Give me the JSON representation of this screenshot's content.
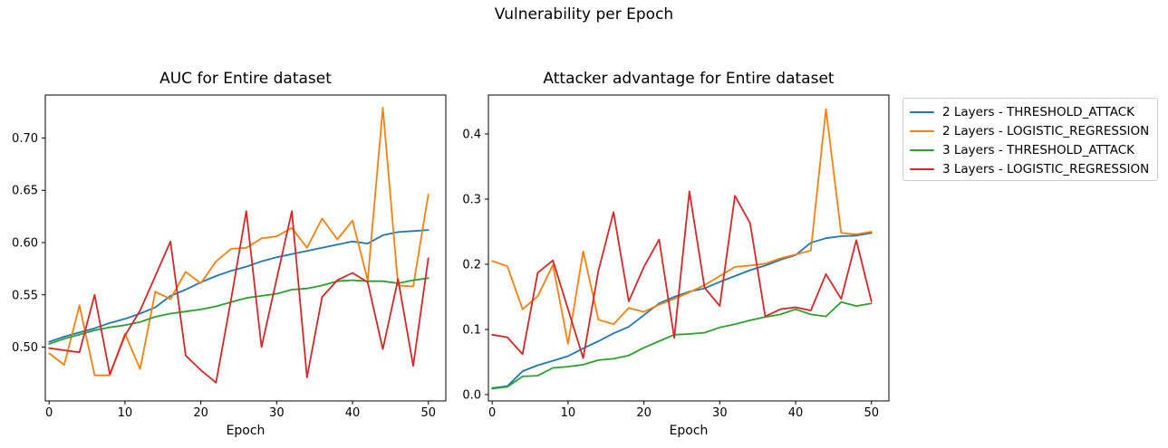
{
  "suptitle": "Vulnerability per Epoch",
  "colors": {
    "blue": "#1f77b4",
    "orange": "#ff7f0e",
    "green": "#2ca02c",
    "red": "#d62728"
  },
  "legend": {
    "entries": [
      {
        "label": "2 Layers - THRESHOLD_ATTACK",
        "color": "#1f77b4"
      },
      {
        "label": "2 Layers - LOGISTIC_REGRESSION",
        "color": "#ff7f0e"
      },
      {
        "label": "3 Layers - THRESHOLD_ATTACK",
        "color": "#2ca02c"
      },
      {
        "label": "3 Layers - LOGISTIC_REGRESSION",
        "color": "#d62728"
      }
    ]
  },
  "chart_data": [
    {
      "type": "line",
      "title": "AUC for Entire dataset",
      "xlabel": "Epoch",
      "ylabel": "",
      "grid": false,
      "x": [
        0,
        2,
        4,
        6,
        8,
        10,
        12,
        14,
        16,
        18,
        20,
        22,
        24,
        26,
        28,
        30,
        32,
        34,
        36,
        38,
        40,
        42,
        44,
        46,
        48,
        50
      ],
      "xticks": [
        0,
        10,
        20,
        30,
        40,
        50
      ],
      "xtick_labels": [
        "0",
        "10",
        "20",
        "30",
        "40",
        "50"
      ],
      "yticks": [
        0.5,
        0.55,
        0.6,
        0.65,
        0.7
      ],
      "ytick_labels": [
        "0.50",
        "0.55",
        "0.60",
        "0.65",
        "0.70"
      ],
      "xlim": [
        -0.5,
        52.3
      ],
      "ylim": [
        0.4485,
        0.7411
      ],
      "series": [
        {
          "name": "2 Layers - THRESHOLD_ATTACK",
          "color": "#1f77b4",
          "values": [
            0.505,
            0.51,
            0.514,
            0.518,
            0.523,
            0.527,
            0.532,
            0.538,
            0.549,
            0.555,
            0.562,
            0.568,
            0.573,
            0.577,
            0.582,
            0.586,
            0.589,
            0.592,
            0.595,
            0.598,
            0.601,
            0.599,
            0.607,
            0.61,
            0.611,
            0.612
          ]
        },
        {
          "name": "2 Layers - LOGISTIC_REGRESSION",
          "color": "#ff7f0e",
          "values": [
            0.494,
            0.483,
            0.54,
            0.473,
            0.473,
            0.513,
            0.479,
            0.553,
            0.546,
            0.572,
            0.561,
            0.582,
            0.594,
            0.595,
            0.604,
            0.606,
            0.614,
            0.595,
            0.623,
            0.603,
            0.621,
            0.564,
            0.729,
            0.559,
            0.558,
            0.646
          ]
        },
        {
          "name": "3 Layers - THRESHOLD_ATTACK",
          "color": "#2ca02c",
          "values": [
            0.503,
            0.508,
            0.512,
            0.516,
            0.519,
            0.521,
            0.524,
            0.529,
            0.532,
            0.534,
            0.536,
            0.539,
            0.543,
            0.547,
            0.549,
            0.551,
            0.555,
            0.556,
            0.559,
            0.563,
            0.564,
            0.563,
            0.563,
            0.561,
            0.564,
            0.566
          ]
        },
        {
          "name": "3 Layers - LOGISTIC_REGRESSION",
          "color": "#d62728",
          "values": [
            0.499,
            0.497,
            0.495,
            0.55,
            0.474,
            0.511,
            0.535,
            0.568,
            0.601,
            0.492,
            0.478,
            0.466,
            0.546,
            0.63,
            0.5,
            0.565,
            0.63,
            0.471,
            0.548,
            0.564,
            0.571,
            0.562,
            0.498,
            0.565,
            0.482,
            0.585
          ]
        }
      ]
    },
    {
      "type": "line",
      "title": "Attacker advantage for Entire dataset",
      "xlabel": "Epoch",
      "ylabel": "",
      "grid": false,
      "x": [
        0,
        2,
        4,
        6,
        8,
        10,
        12,
        14,
        16,
        18,
        20,
        22,
        24,
        26,
        28,
        30,
        32,
        34,
        36,
        38,
        40,
        42,
        44,
        46,
        48,
        50
      ],
      "xticks": [
        0,
        10,
        20,
        30,
        40,
        50
      ],
      "xtick_labels": [
        "0",
        "10",
        "20",
        "30",
        "40",
        "50"
      ],
      "yticks": [
        0.0,
        0.1,
        0.2,
        0.3,
        0.4
      ],
      "ytick_labels": [
        "0.0",
        "0.1",
        "0.2",
        "0.3",
        "0.4"
      ],
      "xlim": [
        -0.5,
        52.3
      ],
      "ylim": [
        -0.0097,
        0.4597
      ],
      "series": [
        {
          "name": "2 Layers - THRESHOLD_ATTACK",
          "color": "#1f77b4",
          "values": [
            0.01,
            0.013,
            0.036,
            0.045,
            0.052,
            0.059,
            0.071,
            0.082,
            0.094,
            0.104,
            0.122,
            0.14,
            0.15,
            0.158,
            0.163,
            0.173,
            0.182,
            0.191,
            0.198,
            0.207,
            0.214,
            0.233,
            0.24,
            0.243,
            0.244,
            0.248
          ]
        },
        {
          "name": "2 Layers - LOGISTIC_REGRESSION",
          "color": "#ff7f0e",
          "values": [
            0.205,
            0.197,
            0.131,
            0.151,
            0.199,
            0.078,
            0.22,
            0.115,
            0.108,
            0.133,
            0.127,
            0.138,
            0.147,
            0.157,
            0.168,
            0.182,
            0.196,
            0.198,
            0.201,
            0.209,
            0.215,
            0.221,
            0.438,
            0.248,
            0.246,
            0.25
          ]
        },
        {
          "name": "3 Layers - THRESHOLD_ATTACK",
          "color": "#2ca02c",
          "values": [
            0.009,
            0.012,
            0.028,
            0.029,
            0.041,
            0.043,
            0.046,
            0.053,
            0.055,
            0.06,
            0.072,
            0.082,
            0.092,
            0.093,
            0.095,
            0.103,
            0.108,
            0.114,
            0.119,
            0.123,
            0.131,
            0.123,
            0.12,
            0.142,
            0.136,
            0.14
          ]
        },
        {
          "name": "3 Layers - LOGISTIC_REGRESSION",
          "color": "#d62728",
          "values": [
            0.092,
            0.088,
            0.062,
            0.187,
            0.206,
            0.131,
            0.056,
            0.19,
            0.28,
            0.143,
            0.196,
            0.238,
            0.087,
            0.312,
            0.164,
            0.136,
            0.305,
            0.263,
            0.12,
            0.131,
            0.134,
            0.129,
            0.185,
            0.147,
            0.237,
            0.143
          ]
        }
      ]
    }
  ]
}
